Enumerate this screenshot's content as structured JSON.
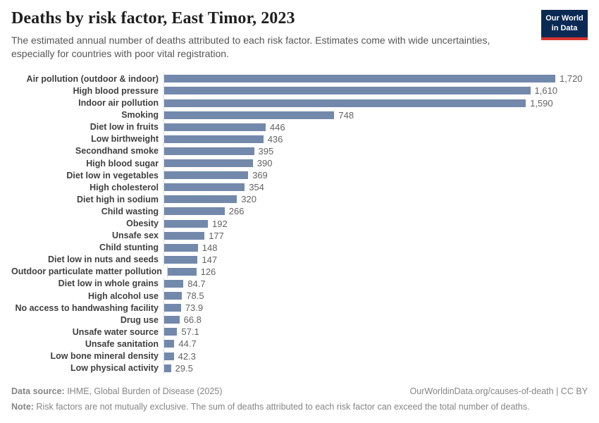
{
  "header": {
    "title": "Deaths by risk factor, East Timor, 2023",
    "subtitle": "The estimated annual number of deaths attributed to each risk factor. Estimates come with wide uncertainties, especially for countries with poor vital registration.",
    "logo": {
      "line1": "Our World",
      "line2": "in Data",
      "bg_color": "#0a2a54",
      "stripe_color": "#d7352e"
    }
  },
  "chart_data": {
    "type": "bar",
    "orientation": "horizontal",
    "title": "Deaths by risk factor, East Timor, 2023",
    "xlabel": "",
    "ylabel": "",
    "xlim": [
      0,
      1720
    ],
    "grid": false,
    "legend": false,
    "bar_color": "#7389ac",
    "categories": [
      "Air pollution (outdoor & indoor)",
      "High blood pressure",
      "Indoor air pollution",
      "Smoking",
      "Diet low in fruits",
      "Low birthweight",
      "Secondhand smoke",
      "High blood sugar",
      "Diet low in vegetables",
      "High cholesterol",
      "Diet high in sodium",
      "Child wasting",
      "Obesity",
      "Unsafe sex",
      "Child stunting",
      "Diet low in nuts and seeds",
      "Outdoor particulate matter pollution",
      "Diet low in whole grains",
      "High alcohol use",
      "No access to handwashing facility",
      "Drug use",
      "Unsafe water source",
      "Unsafe sanitation",
      "Low bone mineral density",
      "Low physical activity"
    ],
    "values": [
      1720,
      1610,
      1590,
      748,
      446,
      436,
      395,
      390,
      369,
      354,
      320,
      266,
      192,
      177,
      148,
      147,
      126,
      84.7,
      78.5,
      73.9,
      66.8,
      57.1,
      44.7,
      42.3,
      29.5
    ],
    "value_labels": [
      "1,720",
      "1,610",
      "1,590",
      "748",
      "446",
      "436",
      "395",
      "390",
      "369",
      "354",
      "320",
      "266",
      "192",
      "177",
      "148",
      "147",
      "126",
      "84.7",
      "78.5",
      "73.9",
      "66.8",
      "57.1",
      "44.7",
      "42.3",
      "29.5"
    ]
  },
  "footer": {
    "source_label": "Data source:",
    "source_text": " IHME, Global Burden of Disease (2025)",
    "link_text": "OurWorldinData.org/causes-of-death",
    "license_text": " | CC BY",
    "note_label": "Note:",
    "note_text": " Risk factors are not mutually exclusive. The sum of deaths attributed to each risk factor can exceed the total number of deaths."
  }
}
